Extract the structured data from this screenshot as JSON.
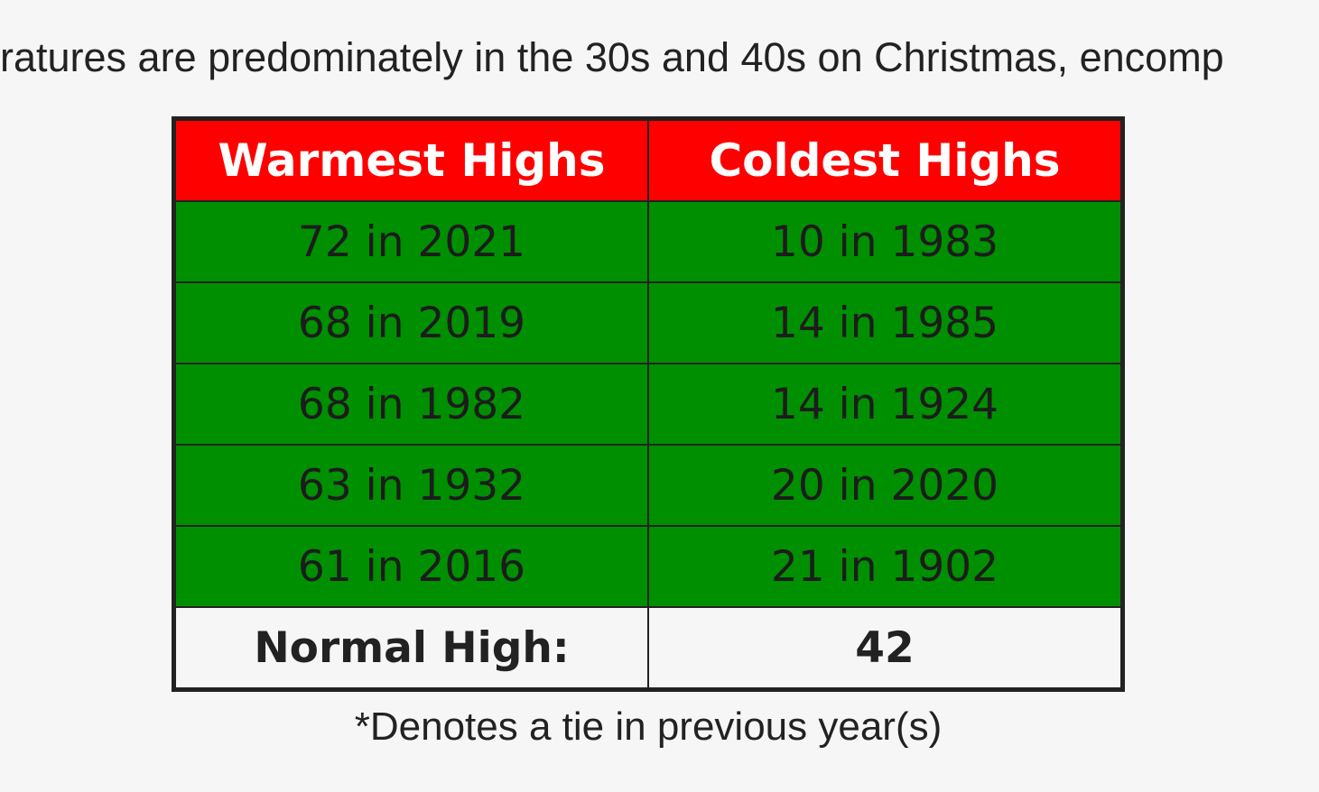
{
  "intro": "ratures are predominately in the 30s and 40s on Christmas, encomp",
  "table": {
    "header": [
      "Warmest Highs",
      "Coldest Highs"
    ],
    "rows": [
      [
        "72 in 2021",
        "10 in 1983"
      ],
      [
        "68 in 2019",
        "14 in 1985"
      ],
      [
        "68 in 1982",
        "14 in 1924"
      ],
      [
        "63 in 1932",
        "20 in 2020"
      ],
      [
        "61 in 2016",
        "21 in 1902"
      ]
    ],
    "footer": [
      "Normal High:",
      "42"
    ]
  },
  "footnote": "*Denotes a tie in previous year(s)"
}
